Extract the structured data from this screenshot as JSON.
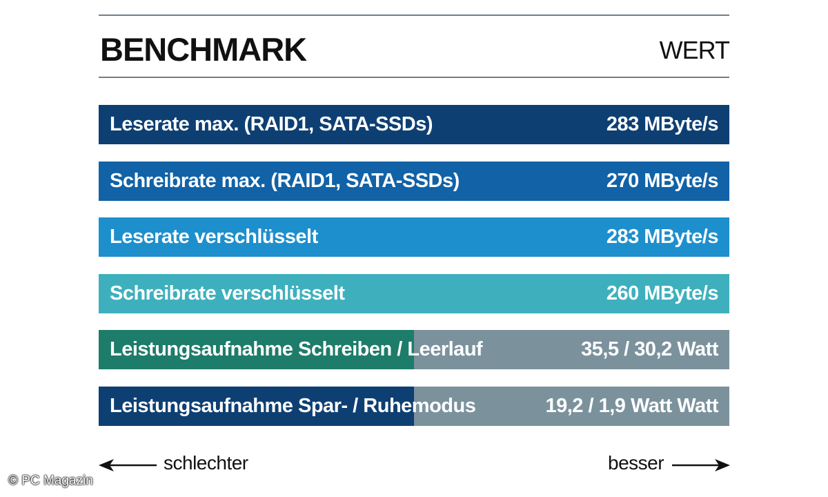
{
  "header": {
    "title": "BENCHMARK",
    "value_heading": "WERT"
  },
  "chart_data": {
    "type": "bar",
    "orientation": "horizontal",
    "rows": [
      {
        "label": "Leserate max. (RAID1, SATA-SSDs)",
        "value_text": "283 MByte/s",
        "fraction": 1.0,
        "color": "#0e3f73",
        "rest_color": "#0e3f73"
      },
      {
        "label": "Schreibrate max. (RAID1, SATA-SSDs)",
        "value_text": "270 MByte/s",
        "fraction": 1.0,
        "color": "#1162a6",
        "rest_color": "#1162a6"
      },
      {
        "label": "Leserate verschlüsselt",
        "value_text": "283 MByte/s",
        "fraction": 1.0,
        "color": "#1e8fcd",
        "rest_color": "#1e8fcd"
      },
      {
        "label": "Schreibrate verschlüsselt",
        "value_text": "260 MByte/s",
        "fraction": 1.0,
        "color": "#3eb0bd",
        "rest_color": "#3eb0bd"
      },
      {
        "label": "Leistungsaufnahme Schreiben / Leerlauf",
        "value_text": "35,5 / 30,2 Watt",
        "fraction": 0.5,
        "color": "#1d7c6a",
        "rest_color": "#7b929d"
      },
      {
        "label": "Leistungsaufnahme Spar- / Ruhemodus",
        "value_text": "19,2 / 1,9 Watt Watt",
        "fraction": 0.5,
        "color": "#0e3f73",
        "rest_color": "#7b929d"
      }
    ]
  },
  "footer": {
    "worse": "schlechter",
    "better": "besser"
  },
  "copyright": "© PC Magazin"
}
